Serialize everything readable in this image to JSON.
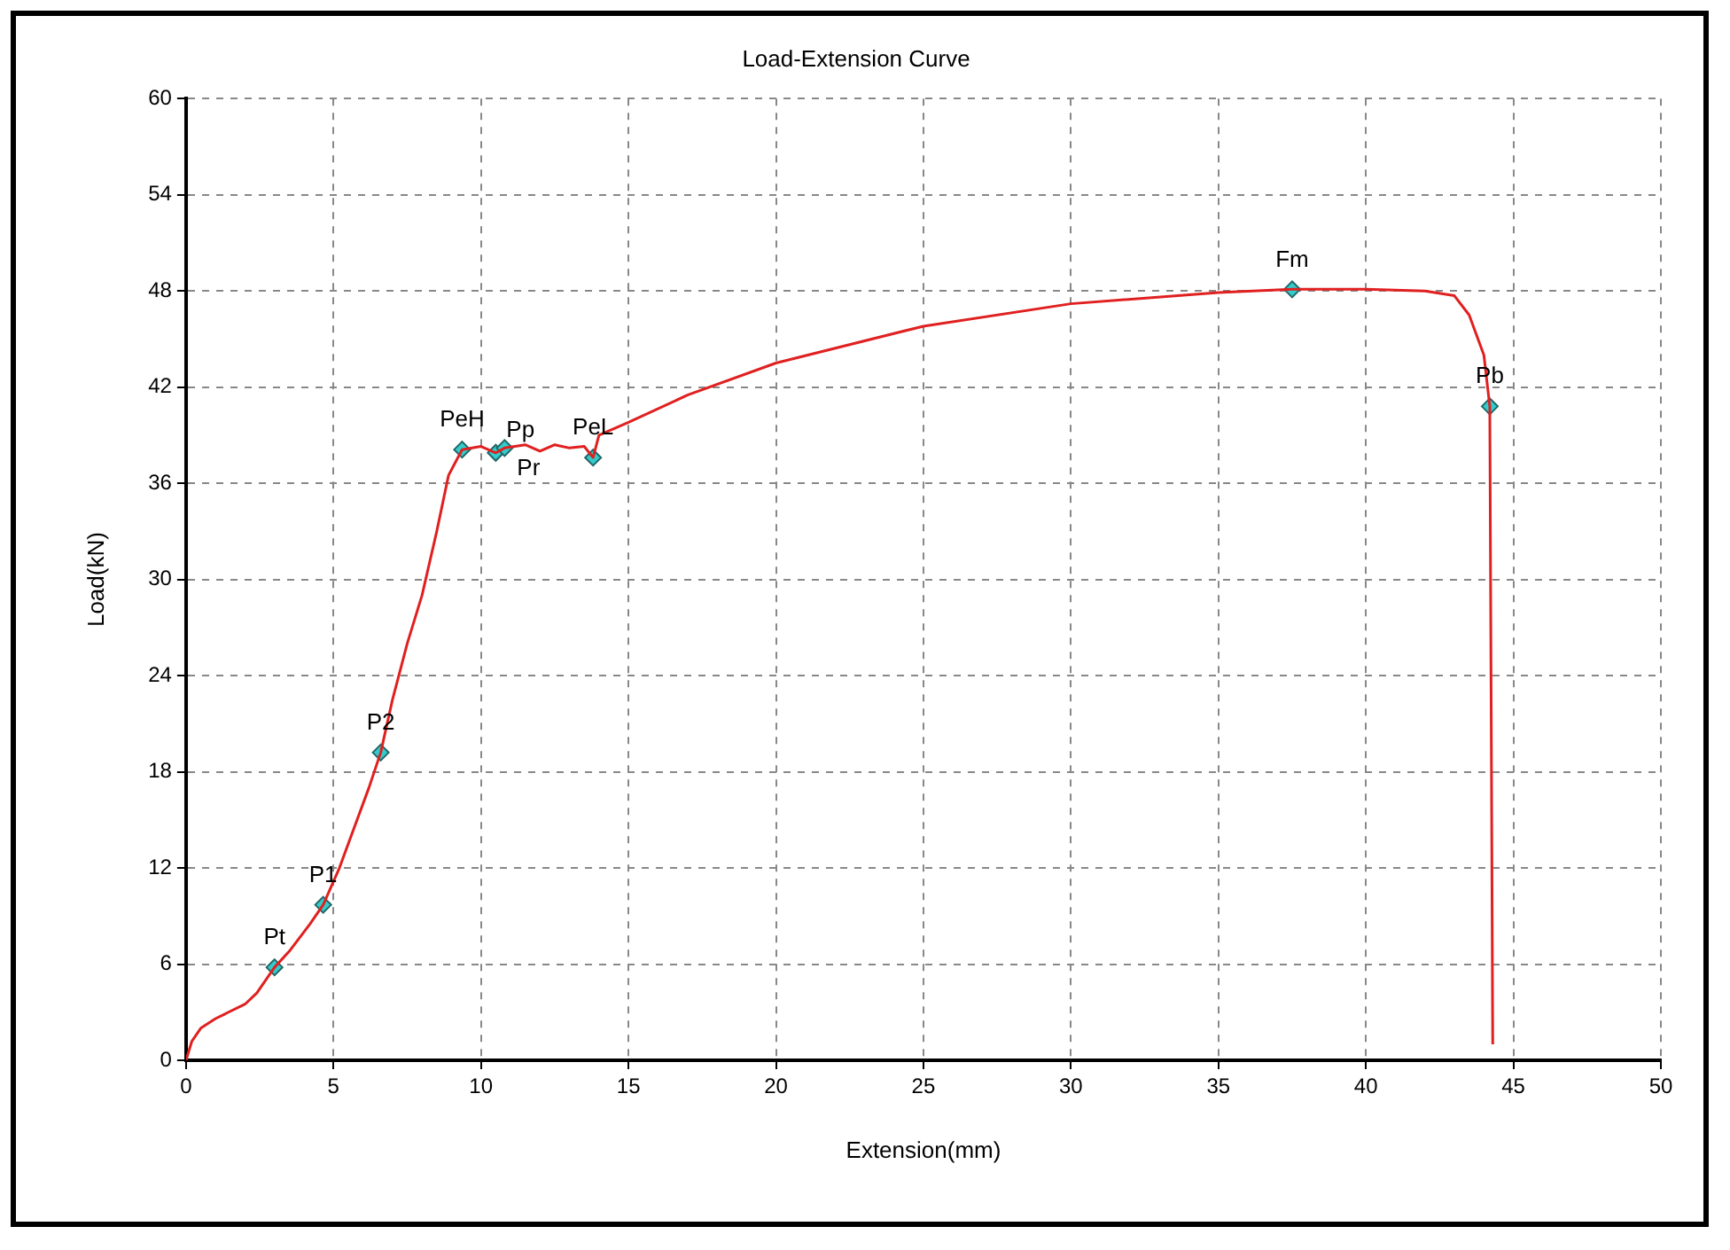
{
  "chart_data": {
    "type": "line",
    "title": "Load-Extension Curve",
    "xlabel": "Extension(mm)",
    "ylabel": "Load(kN)",
    "xlim": [
      0,
      50
    ],
    "xticks": [
      0,
      5,
      10,
      15,
      20,
      25,
      30,
      35,
      40,
      45,
      50
    ],
    "ylim": [
      0,
      60
    ],
    "yticks": [
      0,
      6,
      12,
      18,
      24,
      30,
      36,
      42,
      48,
      54,
      60
    ],
    "grid": true,
    "line_style": "solid",
    "series": [
      {
        "type": "line",
        "color": "#e02020",
        "marker": "none",
        "x": [
          0,
          0.2,
          0.5,
          1,
          2,
          2.4,
          3,
          3.5,
          4.2,
          4.65,
          5.2,
          5.7,
          6.2,
          6.6,
          7,
          7.5,
          8,
          8.5,
          8.9,
          9.36,
          10,
          10.5,
          10.8,
          11.5,
          12,
          12.5,
          13,
          13.5,
          13.8,
          14,
          15,
          17,
          20,
          25,
          30,
          35,
          37.5,
          40,
          42,
          43,
          43.5,
          44,
          44.2,
          44.3
        ],
        "values": [
          0,
          1.2,
          2,
          2.6,
          3.5,
          4.2,
          5.8,
          6.8,
          8.5,
          9.7,
          12,
          14.5,
          17,
          19.2,
          22.5,
          26,
          29,
          33,
          36.5,
          38.1,
          38.3,
          37.9,
          38.2,
          38.4,
          38,
          38.4,
          38.2,
          38.3,
          37.6,
          39,
          39.8,
          41.5,
          43.5,
          45.8,
          47.2,
          47.9,
          48.1,
          48.1,
          48,
          47.7,
          46.5,
          44,
          40.8,
          1
        ]
      },
      {
        "type": "scatter",
        "color": "#33cccc",
        "marker": "diamond",
        "x": [
          3,
          4.65,
          6.6,
          9.36,
          10.5,
          10.8,
          13.8,
          37.5,
          44.2
        ],
        "values": [
          5.8,
          9.7,
          19.2,
          38.1,
          37.9,
          38.2,
          37.6,
          48.1,
          40.8
        ]
      }
    ],
    "annotations": [
      {
        "text": "Pt",
        "x": 3,
        "y": 5.8
      },
      {
        "text": "P1",
        "x": 4.65,
        "y": 9.7
      },
      {
        "text": "P2",
        "x": 6.6,
        "y": 19.2
      },
      {
        "text": "PeH",
        "x": 9.36,
        "y": 38.1
      },
      {
        "text": "Pp",
        "x": 10.5,
        "y": 37.9
      },
      {
        "text": "Pr",
        "x": 10.8,
        "y": 38.2
      },
      {
        "text": "PeL",
        "x": 13.8,
        "y": 37.6
      },
      {
        "text": "Fm",
        "x": 37.5,
        "y": 48.1
      },
      {
        "text": "Pb",
        "x": 44.2,
        "y": 40.8
      }
    ]
  }
}
